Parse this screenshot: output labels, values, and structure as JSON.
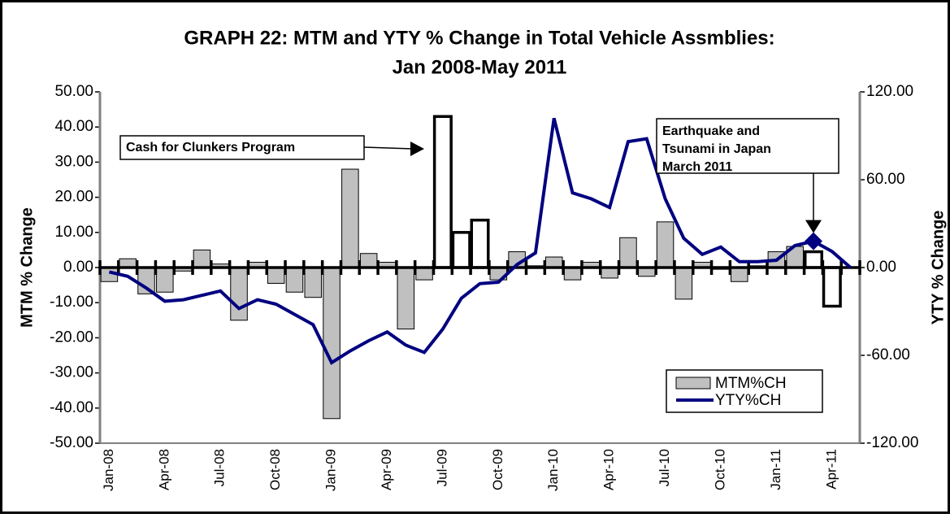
{
  "chart_data": {
    "type": "bar",
    "title": [
      "GRAPH 22: MTM and YTY % Change in Total Vehicle Assmblies:",
      "Jan 2008-May 2011"
    ],
    "ylabel": "MTM % Change",
    "y2label": "YTY % Change",
    "categories": [
      "Jan-08",
      null,
      null,
      "Apr-08",
      null,
      null,
      "Jul-08",
      null,
      null,
      "Oct-08",
      null,
      null,
      "Jan-09",
      null,
      null,
      "Apr-09",
      null,
      null,
      "Jul-09",
      null,
      null,
      "Oct-09",
      null,
      null,
      "Jan-10",
      null,
      null,
      "Apr-10",
      null,
      null,
      "Jul-10",
      null,
      null,
      "Oct-10",
      null,
      null,
      "Jan-11",
      null,
      null,
      "Apr-11",
      null
    ],
    "series": [
      {
        "name": "MTM%CH",
        "type": "bar",
        "color": "#c0c0c0",
        "colors": [
          "#c0c0c0",
          "#c0c0c0",
          "#c0c0c0",
          "#c0c0c0",
          "#c0c0c0",
          "#c0c0c0",
          "#c0c0c0",
          "#c0c0c0",
          "#c0c0c0",
          "#c0c0c0",
          "#c0c0c0",
          "#c0c0c0",
          "#c0c0c0",
          "#c0c0c0",
          "#c0c0c0",
          "#c0c0c0",
          "#c0c0c0",
          "#c0c0c0",
          "#ffffff",
          "#ffffff",
          "#ffffff",
          "#c0c0c0",
          "#c0c0c0",
          "#c0c0c0",
          "#c0c0c0",
          "#c0c0c0",
          "#c0c0c0",
          "#c0c0c0",
          "#c0c0c0",
          "#c0c0c0",
          "#c0c0c0",
          "#c0c0c0",
          "#c0c0c0",
          "#c0c0c0",
          "#c0c0c0",
          "#c0c0c0",
          "#c0c0c0",
          "#c0c0c0",
          "#ffffff",
          "#ffffff",
          "#c0c0c0"
        ],
        "values": [
          -4,
          2.5,
          -7.5,
          -7,
          -1,
          5,
          1,
          -15,
          1.5,
          -4.5,
          -7,
          -8.5,
          -43,
          28,
          4,
          1.5,
          -17.5,
          -3.5,
          43,
          10,
          13.5,
          -3.5,
          4.5,
          0.5,
          3,
          -3.5,
          1.5,
          -3,
          8.5,
          -2.5,
          13,
          -9,
          1.5,
          -0.5,
          -4,
          0.5,
          4.5,
          6,
          4.5,
          -11,
          0
        ]
      },
      {
        "name": "YTY%CH",
        "type": "line",
        "axis": "y2",
        "color": "#000080",
        "values": [
          -3,
          -6,
          -14,
          -23,
          -22,
          -19,
          -16,
          -28,
          -22,
          -25,
          -32,
          -39,
          -65,
          -57,
          -50,
          -44,
          -53,
          -58,
          -42,
          -21,
          -11,
          -10,
          2,
          10,
          102,
          51,
          47,
          41,
          86,
          88,
          47,
          20,
          9,
          14,
          4,
          4,
          5,
          15,
          18,
          11,
          0
        ]
      }
    ],
    "ylim": [
      -50,
      50
    ],
    "yticks": [
      {
        "value": -50,
        "label": "-50.00"
      },
      {
        "value": -40,
        "label": "-40.00"
      },
      {
        "value": -30,
        "label": "-30.00"
      },
      {
        "value": -20,
        "label": "-20.00"
      },
      {
        "value": -10,
        "label": "-10.00"
      },
      {
        "value": 0,
        "label": "0.00"
      },
      {
        "value": 10,
        "label": "10.00"
      },
      {
        "value": 20,
        "label": "20.00"
      },
      {
        "value": 30,
        "label": "30.00"
      },
      {
        "value": 40,
        "label": "40.00"
      },
      {
        "value": 50,
        "label": "50.00"
      }
    ],
    "y2lim": [
      -120,
      120
    ],
    "y2ticks": [
      {
        "value": -120,
        "label": "-120.00"
      },
      {
        "value": -60,
        "label": "-60.00"
      },
      {
        "value": 0,
        "label": "0.00"
      },
      {
        "value": 60,
        "label": "60.00"
      },
      {
        "value": 120,
        "label": "120.00"
      }
    ],
    "annotations": [
      {
        "lines": [
          "Cash for Clunkers Program"
        ]
      },
      {
        "lines": [
          "Earthquake and",
          "Tsunami in Japan",
          "March 2011"
        ]
      }
    ],
    "legend": "lower right"
  }
}
